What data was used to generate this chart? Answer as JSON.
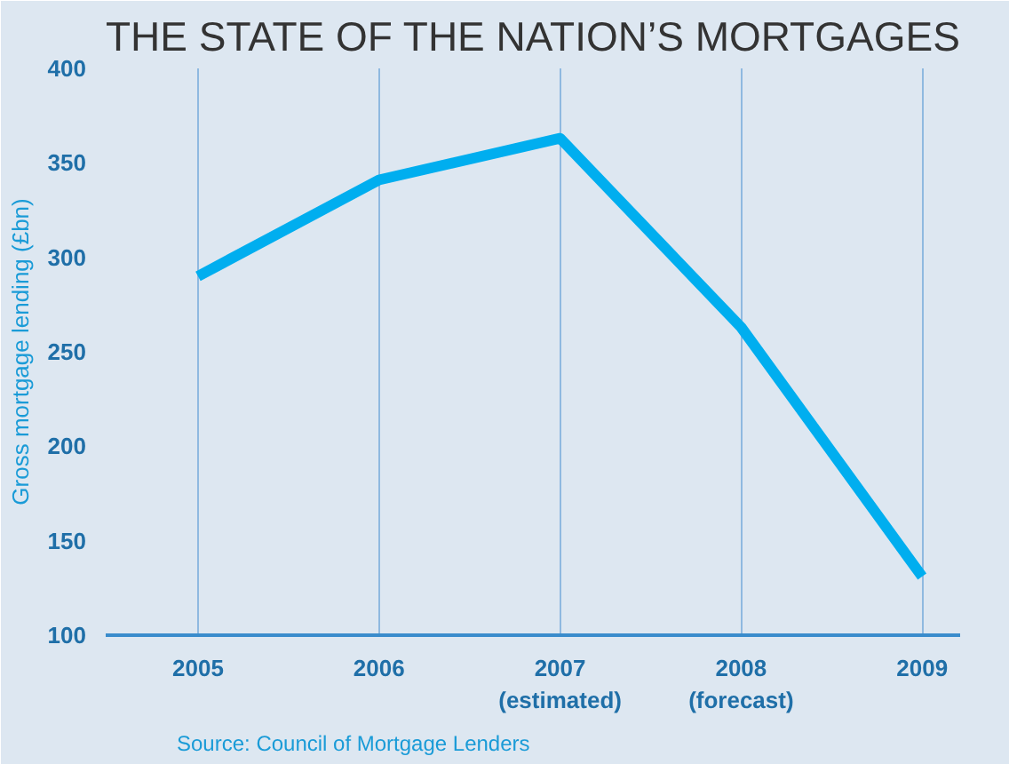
{
  "chart_data": {
    "type": "line",
    "title": "THE STATE OF THE NATION’S MORTGAGES",
    "ylabel": "Gross mortgage lending (£bn)",
    "categories": [
      "2005",
      "2006",
      "2007\n(estimated)",
      "2008\n(forecast)",
      "2009"
    ],
    "series": [
      {
        "color": "#00aeef",
        "values": [
          290,
          341,
          363,
          263,
          131
        ]
      }
    ],
    "ylim": [
      100,
      400
    ],
    "yticks": [
      100,
      150,
      200,
      250,
      300,
      350,
      400
    ],
    "grid": "x",
    "annotations": [
      "Source: Council of Mortgage Lenders"
    ]
  }
}
